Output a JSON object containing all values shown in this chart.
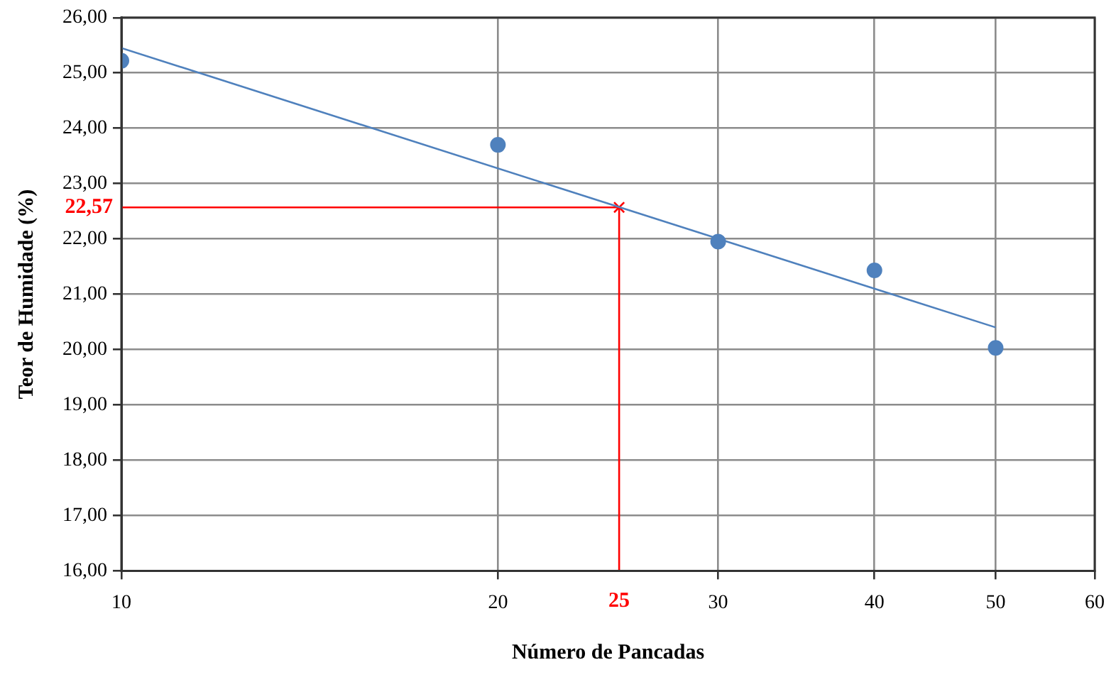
{
  "chart_data": {
    "type": "scatter",
    "xlabel": "Número de Pancadas",
    "ylabel": "Teor de Humidade (%)",
    "log": "x",
    "grid": true,
    "marker": "circle",
    "xlim": [
      10,
      60
    ],
    "xticks": [
      10,
      20,
      30,
      40,
      50,
      60
    ],
    "ylim": [
      16,
      26
    ],
    "yticks": [
      {
        "value": 16,
        "label": "16,00"
      },
      {
        "value": 17,
        "label": "17,00"
      },
      {
        "value": 18,
        "label": "18,00"
      },
      {
        "value": 19,
        "label": "19,00"
      },
      {
        "value": 20,
        "label": "20,00"
      },
      {
        "value": 21,
        "label": "21,00"
      },
      {
        "value": 22,
        "label": "22,00"
      },
      {
        "value": 23,
        "label": "23,00"
      },
      {
        "value": 24,
        "label": "24,00"
      },
      {
        "value": 25,
        "label": "25,00"
      },
      {
        "value": 26,
        "label": "26,00"
      }
    ],
    "series": [
      {
        "type": "scatter",
        "color": "#4f81bd",
        "x": [
          10,
          20,
          30,
          40,
          50
        ],
        "values": [
          25.22,
          23.7,
          21.95,
          21.43,
          20.03
        ]
      },
      {
        "type": "line",
        "color": "#4f81bd",
        "marker": "none",
        "x": [
          10,
          50
        ],
        "values": [
          25.45,
          20.4
        ]
      },
      {
        "type": "scatter",
        "color": "#ff0000",
        "marker": "cross",
        "x": [
          25
        ],
        "values": [
          22.57
        ]
      }
    ],
    "ref_lines": [
      {
        "axis": "x",
        "value": 25,
        "label": "25",
        "color": "#ff0000"
      },
      {
        "axis": "y",
        "value": 22.57,
        "label": "22,57",
        "color": "#ff0000"
      }
    ]
  }
}
